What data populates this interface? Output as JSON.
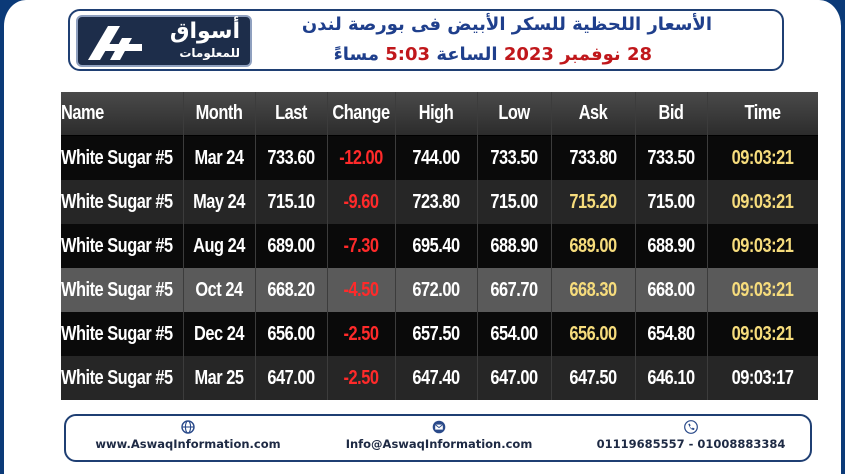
{
  "header": {
    "logo": {
      "brand_ar": "أسواق",
      "tagline_ar": "للمعلومات",
      "icon": "aswaq-logo-icon"
    },
    "title_line1": "الأسعار اللحظية للسكر الأبيض فى بورصة لندن",
    "title_line2_date": "28 نوفمبر 2023",
    "title_line2_mid": "الساعة",
    "title_line2_time": "5:03",
    "title_line2_suffix": "مساءً"
  },
  "table": {
    "columns": [
      "Name",
      "Month",
      "Last",
      "Change",
      "High",
      "Low",
      "Ask",
      "Bid",
      "Time"
    ],
    "rows": [
      {
        "name": "White Sugar #5",
        "month": "Mar 24",
        "last": "733.60",
        "change": "-12.00",
        "high": "744.00",
        "low": "733.50",
        "ask": "733.80",
        "bid": "733.50",
        "time": "09:03:21"
      },
      {
        "name": "White Sugar #5",
        "month": "May 24",
        "last": "715.10",
        "change": "-9.60",
        "high": "723.80",
        "low": "715.00",
        "ask": "715.20",
        "bid": "715.00",
        "time": "09:03:21"
      },
      {
        "name": "White Sugar #5",
        "month": "Aug 24",
        "last": "689.00",
        "change": "-7.30",
        "high": "695.40",
        "low": "688.90",
        "ask": "689.00",
        "bid": "688.90",
        "time": "09:03:21"
      },
      {
        "name": "White Sugar #5",
        "month": "Oct 24",
        "last": "668.20",
        "change": "-4.50",
        "high": "672.00",
        "low": "667.70",
        "ask": "668.30",
        "bid": "668.00",
        "time": "09:03:21"
      },
      {
        "name": "White Sugar #5",
        "month": "Dec 24",
        "last": "656.00",
        "change": "-2.50",
        "high": "657.50",
        "low": "654.00",
        "ask": "656.00",
        "bid": "654.80",
        "time": "09:03:21"
      },
      {
        "name": "White Sugar #5",
        "month": "Mar 25",
        "last": "647.00",
        "change": "-2.50",
        "high": "647.40",
        "low": "647.00",
        "ask": "647.50",
        "bid": "646.10",
        "time": "09:03:17"
      }
    ]
  },
  "footer": {
    "website": "www.AswaqInformation.com",
    "email": "Info@AswaqInformation.com",
    "phones": "01119685557 - 01008883384",
    "icons": [
      "globe-icon",
      "email-icon",
      "phone-icon"
    ]
  },
  "colors": {
    "frame": "#0b3a78",
    "title_blue": "#1f3f8c",
    "title_red": "#c0171b",
    "negative": "#ff2a2a",
    "ask_yellow": "#f6dc7c",
    "time_yellow": "#f6dc7c"
  }
}
